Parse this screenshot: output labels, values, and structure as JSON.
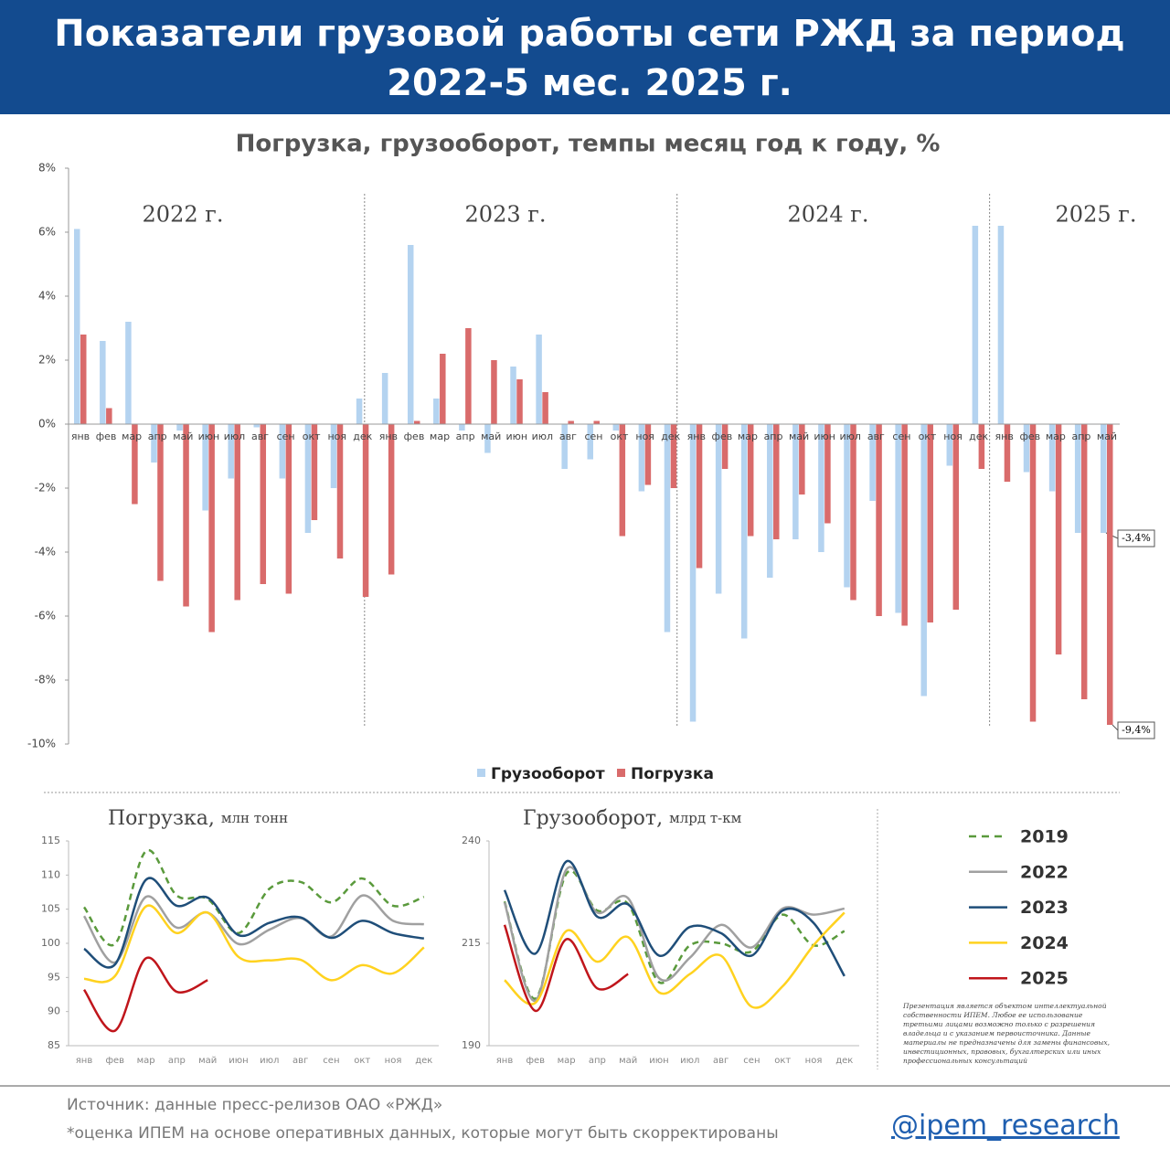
{
  "header": {
    "title": "Показатели грузовой работы сети РЖД за период 2022-5 мес. 2025 г."
  },
  "chart_data": [
    {
      "type": "bar",
      "title": "Погрузка, грузооборот, темпы месяц год к году, %",
      "categories": [
        "янв",
        "фев",
        "мар",
        "апр",
        "май",
        "июн",
        "июл",
        "авг",
        "сен",
        "окт",
        "ноя",
        "дек",
        "янв",
        "фев",
        "мар",
        "апр",
        "май",
        "июн",
        "июл",
        "авг",
        "сен",
        "окт",
        "ноя",
        "дек",
        "янв",
        "фев",
        "мар",
        "апр",
        "май",
        "июн",
        "июл",
        "авг",
        "сен",
        "окт",
        "ноя",
        "дек",
        "янв",
        "фев",
        "мар",
        "апр",
        "май"
      ],
      "annotations": [
        "2022 г.",
        "2023 г.",
        "2024 г.",
        "2025 г."
      ],
      "series": [
        {
          "name": "Грузооборот",
          "color": "#b4d3f0",
          "values": [
            6.1,
            2.6,
            3.2,
            -1.2,
            -0.2,
            -2.7,
            -1.7,
            -0.1,
            -1.7,
            -3.4,
            -2.0,
            0.8,
            1.6,
            5.6,
            0.8,
            -0.2,
            -0.9,
            1.8,
            2.8,
            -1.4,
            -1.1,
            -0.2,
            -2.1,
            -6.5,
            -9.3,
            -5.3,
            -6.7,
            -4.8,
            -3.6,
            -4.0,
            -5.1,
            -2.4,
            -5.9,
            -8.5,
            -1.3,
            6.2,
            6.2,
            -1.5,
            -2.1,
            -3.4,
            -3.4
          ],
          "value_labels": [
            null,
            null,
            null,
            null,
            null,
            null,
            null,
            null,
            null,
            null,
            null,
            null,
            null,
            null,
            null,
            null,
            null,
            null,
            null,
            null,
            null,
            null,
            null,
            null,
            null,
            null,
            null,
            null,
            null,
            null,
            null,
            null,
            null,
            null,
            null,
            null,
            null,
            null,
            null,
            null,
            "-3,4%"
          ]
        },
        {
          "name": "Погрузка",
          "color": "#d96b6b",
          "values": [
            2.8,
            0.5,
            -2.5,
            -4.9,
            -5.7,
            -6.5,
            -5.5,
            -5.0,
            -5.3,
            -3.0,
            -4.2,
            -5.4,
            -4.7,
            0.1,
            2.2,
            3.0,
            2.0,
            1.4,
            1.0,
            0.1,
            0.1,
            -3.5,
            -1.9,
            -2.0,
            -4.5,
            -1.4,
            -3.5,
            -3.6,
            -2.2,
            -3.1,
            -5.5,
            -6.0,
            -6.3,
            -6.2,
            -5.8,
            -1.4,
            -1.8,
            -9.3,
            -7.2,
            -8.6,
            -9.4
          ],
          "value_labels": [
            null,
            null,
            null,
            null,
            null,
            null,
            null,
            null,
            null,
            null,
            null,
            null,
            null,
            null,
            null,
            null,
            null,
            null,
            null,
            null,
            null,
            null,
            null,
            null,
            null,
            null,
            null,
            null,
            null,
            null,
            null,
            null,
            null,
            null,
            null,
            null,
            null,
            null,
            null,
            null,
            "-9,4%"
          ]
        }
      ],
      "ylim": [
        -10,
        8
      ],
      "yticks": [
        {
          "value": 8,
          "label": "8%"
        },
        {
          "value": 6,
          "label": "6%"
        },
        {
          "value": 4,
          "label": "4%"
        },
        {
          "value": 2,
          "label": "2%"
        },
        {
          "value": 0,
          "label": "0%"
        },
        {
          "value": -2,
          "label": "-2%"
        },
        {
          "value": -4,
          "label": "-4%"
        },
        {
          "value": -6,
          "label": "-6%"
        },
        {
          "value": -8,
          "label": "-8%"
        },
        {
          "value": -10,
          "label": "-10%"
        }
      ],
      "legend": "bottom"
    },
    {
      "type": "line",
      "title": "Погрузка,",
      "subtitle": "млн тонн",
      "categories": [
        "янв",
        "фев",
        "мар",
        "апр",
        "май",
        "июн",
        "июл",
        "авг",
        "сен",
        "окт",
        "ноя",
        "дек"
      ],
      "series": [
        {
          "name": "2019",
          "color": "#5a9a3c",
          "style": "dashed",
          "values": [
            105.3,
            99.9,
            113.5,
            107,
            106.5,
            101.5,
            108,
            109,
            106,
            109.5,
            105.5,
            106.8
          ]
        },
        {
          "name": "2022",
          "color": "#a0a0a0",
          "style": "solid",
          "values": [
            104,
            97.2,
            106.8,
            102.3,
            104.5,
            99.9,
            102,
            103.7,
            101,
            107,
            103.3,
            102.8
          ]
        },
        {
          "name": "2023",
          "color": "#1f4e79",
          "style": "solid",
          "values": [
            99.2,
            96.9,
            109.3,
            105.5,
            106.7,
            101.2,
            103,
            103.8,
            100.8,
            103.3,
            101.5,
            100.7
          ]
        },
        {
          "name": "2024",
          "color": "#ffd21f",
          "style": "solid",
          "values": [
            94.8,
            95.2,
            105.4,
            101.5,
            104.5,
            98,
            97.5,
            97.6,
            94.6,
            96.8,
            95.6,
            99.4
          ]
        },
        {
          "name": "2025",
          "color": "#c0151b",
          "style": "solid",
          "values": [
            93.2,
            87.2,
            97.8,
            92.9,
            94.6,
            null,
            null,
            null,
            null,
            null,
            null,
            null
          ]
        }
      ],
      "ylim": [
        85,
        115
      ],
      "yticks": [
        85,
        90,
        95,
        100,
        105,
        110,
        115
      ]
    },
    {
      "type": "line",
      "title": "Грузооборот,",
      "subtitle": "млрд т-км",
      "categories": [
        "янв",
        "фев",
        "мар",
        "апр",
        "май",
        "июн",
        "июл",
        "авг",
        "сен",
        "окт",
        "ноя",
        "дек"
      ],
      "series": [
        {
          "color": "#5a9a3c",
          "style": "dashed",
          "values": [
            225.2,
            201.5,
            232,
            223,
            224.6,
            205.5,
            214.5,
            215,
            213,
            222,
            214.5,
            218
          ]
        },
        {
          "color": "#a0a0a0",
          "style": "solid",
          "values": [
            225,
            201,
            233,
            222.5,
            226,
            206.5,
            211.5,
            219.5,
            214,
            223.5,
            222,
            223.5
          ]
        },
        {
          "color": "#1f4e79",
          "style": "solid",
          "values": [
            228,
            212.5,
            235,
            221.5,
            224.5,
            212,
            219,
            217.5,
            212,
            223,
            220,
            207
          ]
        },
        {
          "color": "#ffd21f",
          "style": "solid",
          "values": [
            206,
            200.5,
            218,
            210.5,
            216.5,
            203,
            207.5,
            212,
            199.5,
            204.5,
            214.5,
            222.5
          ]
        },
        {
          "color": "#c0151b",
          "style": "solid",
          "values": [
            219.5,
            198.5,
            216,
            204,
            207.5,
            null,
            null,
            null,
            null,
            null,
            null,
            null
          ]
        }
      ],
      "ylim": [
        190,
        240
      ],
      "yticks": [
        190,
        215,
        240
      ]
    }
  ],
  "disclaimer": "Презентация является объектом интеллектуальной собственности ИПЕМ. Любое ее использование третьими лицами возможно только с разрешения владельца и с указанием первоисточника. Данные материалы не предназначены для замены финансовых, инвестиционных, правовых, бухгалтерских или иных профессиональных консультаций",
  "footer": {
    "source": "Источник: данные пресс-релизов ОАО «РЖД»",
    "note": "*оценка ИПЕМ на основе оперативных данных, которые могут быть скорректированы",
    "handle": "@ipem_research"
  }
}
